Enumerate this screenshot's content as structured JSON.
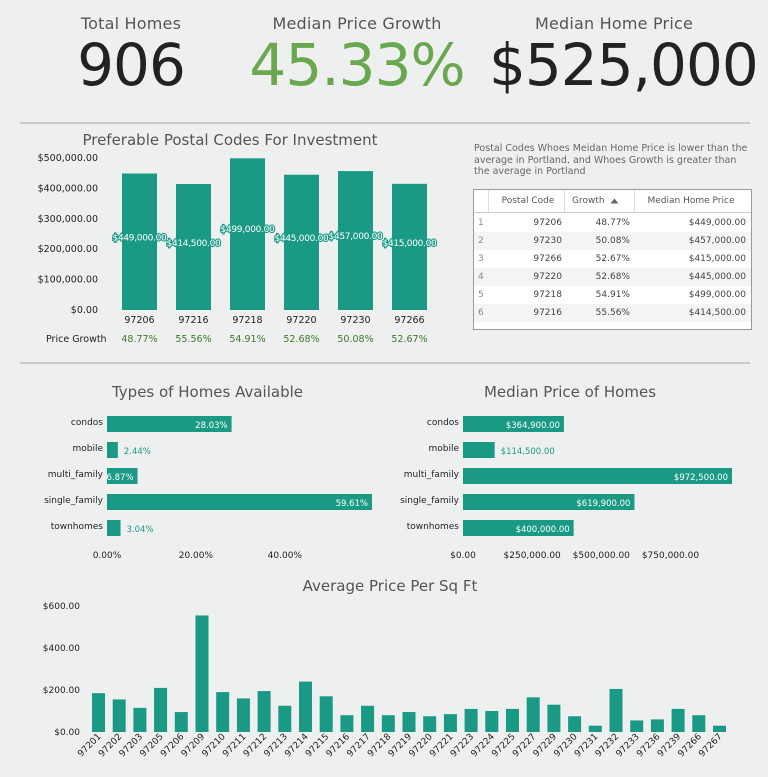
{
  "kpis": {
    "total_homes": {
      "label": "Total Homes",
      "value": "906"
    },
    "median_growth": {
      "label": "Median Price Growth",
      "value": "45.33%"
    },
    "median_price": {
      "label": "Median Home Price",
      "value": "$525,000"
    }
  },
  "colors": {
    "bar": "#1a9a85",
    "growth_green": "#6aa84f",
    "growth_text": "#3d7a2a",
    "axis": "#222"
  },
  "postal_note": "Postal Codes Whoes Meidan Home Price is lower than the average in Portland, and Whoes Growth is greater than the average in Portland",
  "table": {
    "headers": [
      "Postal Code",
      "Growth",
      "Median Home Price"
    ],
    "sort_icon": "sort-up-icon",
    "rows": [
      {
        "idx": "1",
        "code": "97206",
        "growth": "48.77%",
        "price": "$449,000.00"
      },
      {
        "idx": "2",
        "code": "97230",
        "growth": "50.08%",
        "price": "$457,000.00"
      },
      {
        "idx": "3",
        "code": "97266",
        "growth": "52.67%",
        "price": "$415,000.00"
      },
      {
        "idx": "4",
        "code": "97220",
        "growth": "52.68%",
        "price": "$445,000.00"
      },
      {
        "idx": "5",
        "code": "97218",
        "growth": "54.91%",
        "price": "$499,000.00"
      },
      {
        "idx": "6",
        "code": "97216",
        "growth": "55.56%",
        "price": "$414,500.00"
      }
    ]
  },
  "chart_data": [
    {
      "type": "bar",
      "title": "Preferable Postal Codes For Investment",
      "categories": [
        "97206",
        "97216",
        "97218",
        "97220",
        "97230",
        "97266"
      ],
      "values": [
        449000,
        414500,
        499000,
        445000,
        457000,
        415000
      ],
      "data_labels": [
        "$449,000.00",
        "$414,500.00",
        "$499,000.00",
        "$445,000.00",
        "$457,000.00",
        "$415,000.00"
      ],
      "ylim": [
        0,
        500000
      ],
      "yticks": [
        0,
        100000,
        200000,
        300000,
        400000,
        500000
      ],
      "ytick_labels": [
        "$0.00",
        "$100,000.00",
        "$200,000.00",
        "$300,000.00",
        "$400,000.00",
        "$500,000.00"
      ],
      "growth_label": "Price Growth",
      "growth_values": [
        "48.77%",
        "55.56%",
        "54.91%",
        "52.68%",
        "50.08%",
        "52.67%"
      ]
    },
    {
      "type": "bar",
      "orientation": "horizontal",
      "title": "Types of Homes Available",
      "categories": [
        "condos",
        "mobile",
        "multi_family",
        "single_family",
        "townhomes"
      ],
      "values": [
        28.03,
        2.44,
        6.87,
        59.61,
        3.04
      ],
      "data_labels": [
        "28.03%",
        "2.44%",
        "6.87%",
        "59.61%",
        "3.04%"
      ],
      "xlim": [
        0,
        60
      ],
      "xticks": [
        0,
        20,
        40
      ],
      "xtick_labels": [
        "0.00%",
        "20.00%",
        "40.00%"
      ]
    },
    {
      "type": "bar",
      "orientation": "horizontal",
      "title": "Median Price of Homes",
      "categories": [
        "condos",
        "mobile",
        "multi_family",
        "single_family",
        "townhomes"
      ],
      "values": [
        364900,
        114500,
        972500,
        619900,
        400000
      ],
      "data_labels": [
        "$364,900.00",
        "$114,500.00",
        "$972,500.00",
        "$619,900.00",
        "$400,000.00"
      ],
      "xlim": [
        0,
        972500
      ],
      "xticks": [
        0,
        250000,
        500000,
        750000
      ],
      "xtick_labels": [
        "$0.00",
        "$250,000.00",
        "$500,000.00",
        "$750,000.00"
      ]
    },
    {
      "type": "bar",
      "title": "Average Price Per Sq Ft",
      "categories": [
        "97201",
        "97202",
        "97203",
        "97205",
        "97206",
        "97209",
        "97210",
        "97211",
        "97212",
        "97213",
        "97214",
        "97215",
        "97216",
        "97217",
        "97218",
        "97219",
        "97220",
        "97221",
        "97223",
        "97224",
        "97225",
        "97227",
        "97229",
        "97230",
        "97231",
        "97232",
        "97233",
        "97236",
        "97239",
        "97266",
        "97267"
      ],
      "values": [
        185,
        155,
        115,
        210,
        95,
        555,
        190,
        160,
        195,
        125,
        240,
        170,
        80,
        125,
        80,
        95,
        75,
        85,
        110,
        100,
        110,
        165,
        130,
        75,
        30,
        205,
        55,
        60,
        110,
        80,
        30
      ],
      "ylim": [
        0,
        600
      ],
      "yticks": [
        0,
        200,
        400,
        600
      ],
      "ytick_labels": [
        "$0.00",
        "$200.00",
        "$400.00",
        "$600.00"
      ]
    }
  ]
}
